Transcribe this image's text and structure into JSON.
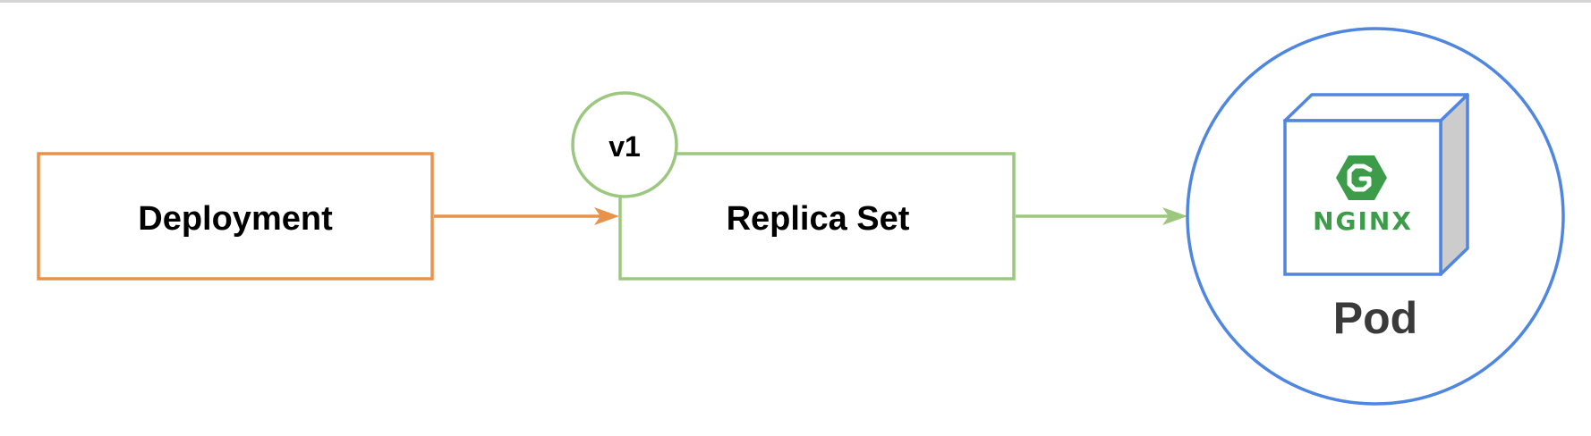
{
  "nodes": {
    "deployment": {
      "label": "Deployment"
    },
    "replica_set": {
      "label": "Replica Set",
      "version_badge": "v1"
    },
    "pod": {
      "label": "Pod",
      "logo_text": "NGINX"
    }
  },
  "edges": [
    {
      "from": "deployment",
      "to": "replica_set"
    },
    {
      "from": "replica_set",
      "to": "pod"
    }
  ],
  "colors": {
    "deployment": "#E8924A",
    "replica_set": "#9CC77E",
    "pod": "#4F86E0",
    "nginx": "#3D9C4A",
    "cube_side": "#CCCCCC",
    "pod_label": "#3A3A3A"
  }
}
